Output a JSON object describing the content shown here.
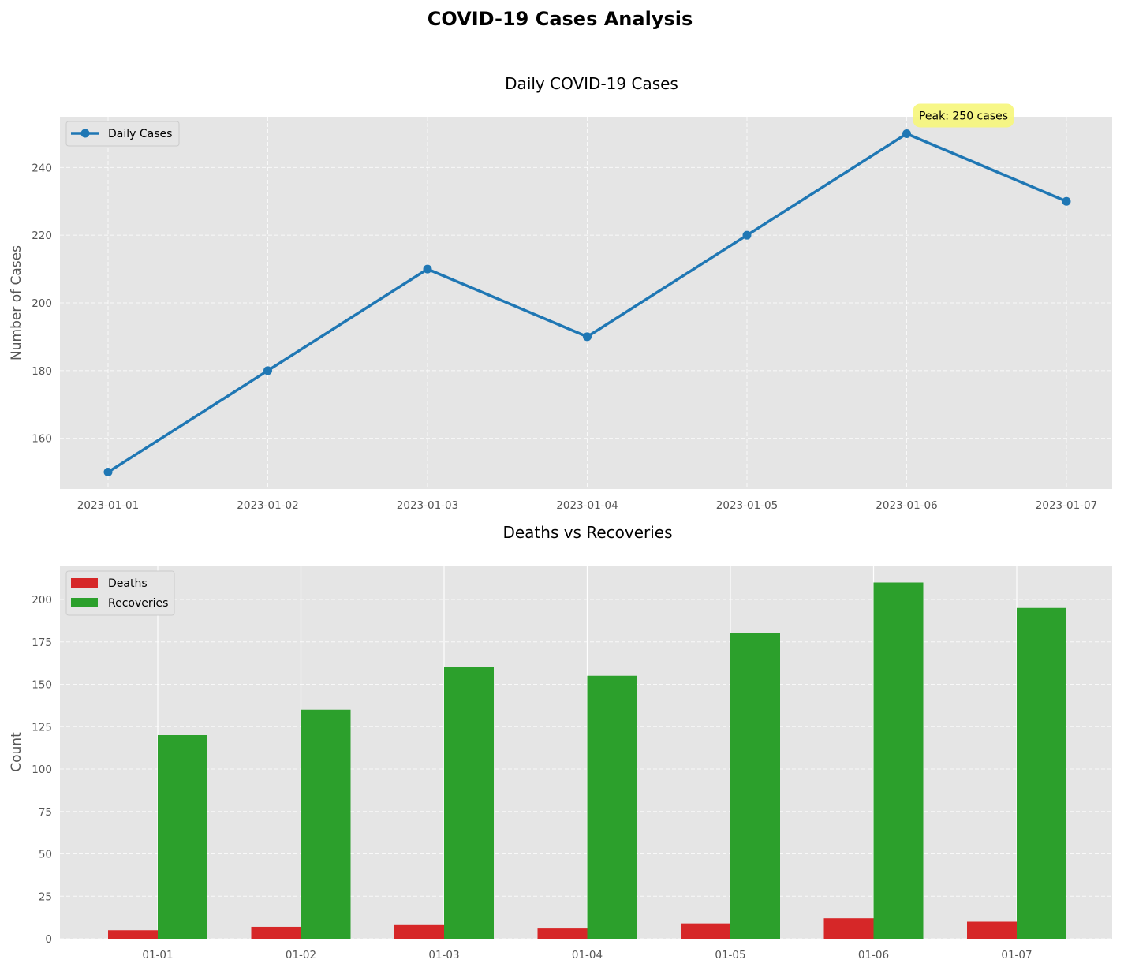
{
  "suptitle": "COVID-19 Cases Analysis",
  "chart_data": [
    {
      "type": "line",
      "title": "Daily COVID-19 Cases",
      "xlabel": "",
      "ylabel": "Number of Cases",
      "x": [
        "2023-01-01",
        "2023-01-02",
        "2023-01-03",
        "2023-01-04",
        "2023-01-05",
        "2023-01-06",
        "2023-01-07"
      ],
      "series": [
        {
          "name": "Daily Cases",
          "values": [
            150,
            180,
            210,
            190,
            220,
            250,
            230
          ],
          "color": "#1f77b4"
        }
      ],
      "ylim": [
        145,
        255
      ],
      "yticks": [
        160,
        180,
        200,
        220,
        240
      ],
      "annotation": {
        "text": "Peak: 250 cases",
        "x": "2023-01-06",
        "y": 250,
        "bg": "#f6f67a"
      },
      "grid": true,
      "legend": "upper-left"
    },
    {
      "type": "bar",
      "title": "Deaths vs Recoveries",
      "xlabel": "",
      "ylabel": "Count",
      "categories": [
        "01-01",
        "01-02",
        "01-03",
        "01-04",
        "01-05",
        "01-06",
        "01-07"
      ],
      "series": [
        {
          "name": "Deaths",
          "values": [
            5,
            7,
            8,
            6,
            9,
            12,
            10
          ],
          "color": "#d62728"
        },
        {
          "name": "Recoveries",
          "values": [
            120,
            135,
            160,
            155,
            180,
            210,
            195
          ],
          "color": "#2ca02c"
        }
      ],
      "ylim": [
        0,
        220
      ],
      "yticks": [
        0,
        25,
        50,
        75,
        100,
        125,
        150,
        175,
        200
      ],
      "grid": true,
      "legend": "upper-left"
    }
  ]
}
